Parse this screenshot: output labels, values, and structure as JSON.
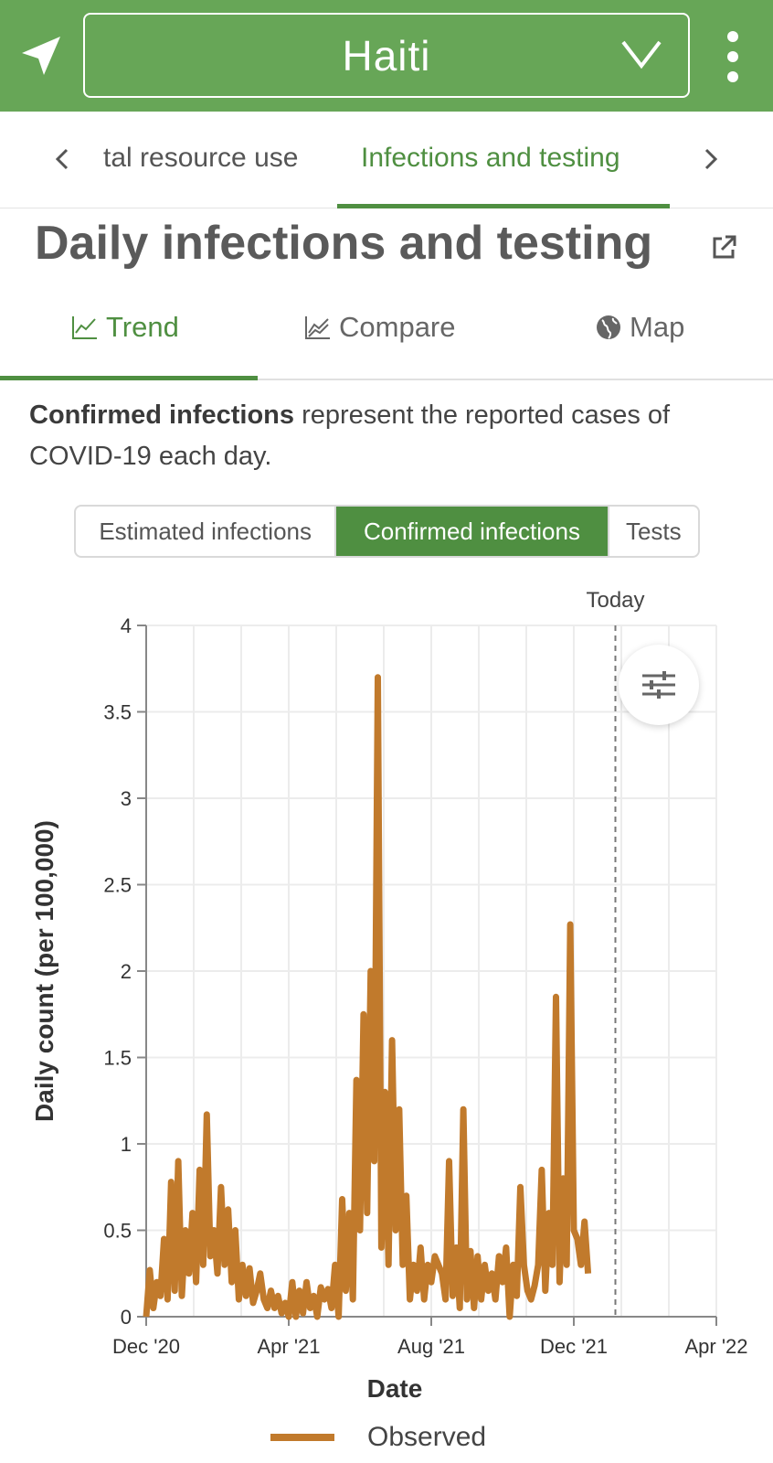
{
  "header": {
    "country": "Haiti",
    "colors": {
      "bar": "#67a657",
      "accent": "#4f8f41",
      "series": "#c17a2c"
    }
  },
  "section_tabs": {
    "prev_partial": "tal resource use",
    "active": "Infections and testing"
  },
  "title": "Daily infections and testing",
  "view_tabs": [
    "Trend",
    "Compare",
    "Map"
  ],
  "description": {
    "bold": "Confirmed infections",
    "rest": " represent the reported cases of COVID-19 each day."
  },
  "segments": [
    "Estimated infections",
    "Confirmed infections",
    "Tests"
  ],
  "chart_data": {
    "type": "line",
    "ylabel": "Daily count (per 100,000)",
    "xlabel": "Date",
    "today_label": "Today",
    "ylim": [
      0,
      4
    ],
    "yticks": [
      "0",
      "0.5",
      "1",
      "1.5",
      "2",
      "2.5",
      "3",
      "3.5",
      "4"
    ],
    "xticks": [
      "Dec '20",
      "Apr '21",
      "Aug '21",
      "Dec '21",
      "Apr '22"
    ],
    "x_range_days": [
      0,
      480
    ],
    "today_day": 395,
    "grid": true,
    "series": [
      {
        "name": "Observed",
        "x": [
          0,
          3,
          6,
          9,
          12,
          15,
          18,
          21,
          24,
          27,
          30,
          33,
          36,
          39,
          42,
          45,
          48,
          51,
          54,
          57,
          60,
          63,
          66,
          69,
          72,
          75,
          78,
          81,
          84,
          87,
          90,
          93,
          96,
          99,
          102,
          105,
          108,
          111,
          114,
          117,
          120,
          123,
          126,
          129,
          132,
          135,
          138,
          141,
          144,
          147,
          150,
          153,
          156,
          159,
          162,
          165,
          168,
          171,
          174,
          177,
          180,
          183,
          186,
          189,
          192,
          195,
          198,
          201,
          204,
          207,
          210,
          213,
          216,
          219,
          222,
          225,
          228,
          231,
          234,
          237,
          240,
          243,
          246,
          249,
          252,
          255,
          258,
          261,
          264,
          267,
          270,
          273,
          276,
          279,
          282,
          285,
          288,
          291,
          294,
          297,
          300,
          303,
          306,
          309,
          312,
          315,
          318,
          321,
          324,
          327,
          330,
          333,
          336,
          339,
          342,
          345,
          348,
          351,
          354,
          357,
          360,
          363,
          366
        ],
        "values": [
          0.0,
          0.27,
          0.05,
          0.2,
          0.12,
          0.45,
          0.1,
          0.78,
          0.15,
          0.9,
          0.12,
          0.5,
          0.25,
          0.6,
          0.2,
          0.85,
          0.3,
          1.17,
          0.35,
          0.5,
          0.25,
          0.75,
          0.3,
          0.62,
          0.2,
          0.5,
          0.1,
          0.3,
          0.12,
          0.28,
          0.08,
          0.15,
          0.25,
          0.1,
          0.05,
          0.15,
          0.05,
          0.12,
          0.02,
          0.08,
          0.0,
          0.2,
          0.0,
          0.15,
          0.02,
          0.2,
          0.05,
          0.12,
          0.0,
          0.17,
          0.1,
          0.16,
          0.05,
          0.3,
          0.0,
          0.68,
          0.15,
          0.6,
          0.1,
          1.37,
          0.5,
          1.75,
          0.6,
          2.0,
          0.9,
          3.7,
          0.4,
          1.3,
          0.3,
          1.6,
          0.5,
          1.2,
          0.3,
          0.7,
          0.1,
          0.3,
          0.15,
          0.4,
          0.1,
          0.3,
          0.2,
          0.35,
          0.3,
          0.25,
          0.1,
          0.9,
          0.12,
          0.4,
          0.05,
          1.2,
          0.1,
          0.38,
          0.05,
          0.35,
          0.1,
          0.3,
          0.15,
          0.25,
          0.1,
          0.35,
          0.2,
          0.4,
          0.0,
          0.3,
          0.12,
          0.75,
          0.3,
          0.15,
          0.1,
          0.18,
          0.3,
          0.85,
          0.15,
          0.6,
          0.3,
          1.85,
          0.2,
          0.8,
          0.3,
          2.27,
          0.5,
          0.45,
          0.3
        ]
      }
    ],
    "tail_x": [
      369,
      372,
      375,
      378,
      381,
      384,
      387,
      390,
      393,
      396,
      399,
      402,
      405,
      408,
      411,
      414,
      417,
      420,
      423,
      426,
      429,
      432,
      435,
      438,
      441,
      444,
      447,
      450,
      453,
      456,
      459,
      462,
      465,
      468,
      471,
      474,
      477,
      480
    ],
    "tail_values": [
      0.55,
      0.25,
      0.5,
      0.1,
      0.62,
      0.2,
      0.45,
      0.15,
      0.6,
      0.3,
      0.5,
      0.1,
      0.72,
      0.25,
      0.4,
      0.2,
      0.4,
      0.15,
      0.5,
      0.2,
      0.42,
      0.1,
      0.35,
      0.15,
      0.3,
      0.1,
      0.45,
      0.2,
      0.35,
      0.1,
      0.3,
      0.1,
      0.25,
      0.1,
      0.22,
      0.1,
      0.2,
      0.1
    ]
  },
  "legend": {
    "label": "Observed"
  }
}
